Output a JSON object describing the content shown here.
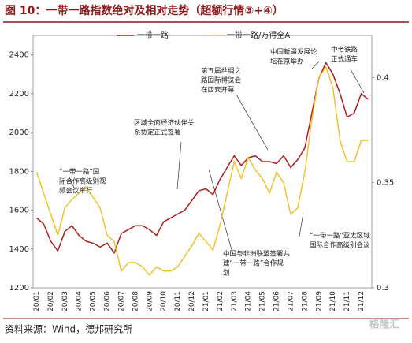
{
  "chart_data": {
    "type": "line",
    "title": "图 10：一带一路指数绝对及相对走势（超额行情③+④）",
    "source": "资料来源：Wind，德邦研究所",
    "watermark": "格隆汇",
    "categories": [
      "20/01",
      null,
      "20/02",
      null,
      "20/03",
      null,
      "20/04",
      null,
      "20/05",
      null,
      "20/06",
      null,
      "20/07",
      null,
      "20/08",
      null,
      "20/09",
      null,
      "20/10",
      null,
      "20/11",
      null,
      "20/12",
      null,
      "21/01",
      null,
      "21/02",
      null,
      "21/03",
      null,
      "21/04",
      null,
      "21/05",
      null,
      "21/06",
      null,
      "21/07",
      null,
      "21/08",
      null,
      "21/09",
      null,
      "21/10",
      null,
      "21/11",
      null,
      "21/12",
      null
    ],
    "series": [
      {
        "name": "一带一路",
        "color": "#b01c1c",
        "values": [
          1560,
          1530,
          1440,
          1390,
          1490,
          1520,
          1470,
          1440,
          1430,
          1410,
          1430,
          1380,
          1480,
          1500,
          1520,
          1520,
          1500,
          1470,
          1540,
          1560,
          1580,
          1600,
          1650,
          1700,
          1710,
          1680,
          1760,
          1820,
          1880,
          1830,
          1870,
          1880,
          1850,
          1850,
          1840,
          1880,
          1820,
          1860,
          1920,
          2100,
          2280,
          2360,
          2300,
          2200,
          2080,
          2100,
          2200,
          2170
        ]
      },
      {
        "name": "一带一路/万得全A",
        "color": "#f2c12e",
        "axis": "y2",
        "values": [
          0.355,
          0.345,
          0.335,
          0.325,
          0.338,
          0.342,
          0.345,
          0.348,
          0.343,
          0.338,
          0.325,
          0.322,
          0.308,
          0.312,
          0.312,
          0.31,
          0.306,
          0.31,
          0.308,
          0.308,
          0.31,
          0.315,
          0.32,
          0.326,
          0.322,
          0.318,
          0.33,
          0.345,
          0.36,
          0.352,
          0.362,
          0.356,
          0.352,
          0.345,
          0.355,
          0.35,
          0.335,
          0.338,
          0.355,
          0.38,
          0.4,
          0.405,
          0.395,
          0.37,
          0.36,
          0.36,
          0.37,
          0.37
        ]
      }
    ],
    "ylim": [
      1200,
      2500
    ],
    "yticks": [
      1200,
      1400,
      1600,
      1800,
      2000,
      2200,
      2400
    ],
    "y2lim": [
      0.3,
      0.42
    ],
    "y2ticks": [
      0.3,
      0.35,
      0.4
    ],
    "annotations": [
      {
        "lines": [
          "“一带一路”国",
          "际合作高级别视",
          "频会议举行"
        ]
      },
      {
        "lines": [
          "区域全面经济伙伴关",
          "系协定正式签署"
        ]
      },
      {
        "lines": [
          "第五届丝绸之",
          "路国际博览会",
          "在西安开幕"
        ]
      },
      {
        "lines": [
          "中国新疆发展论",
          "坛在京举办"
        ]
      },
      {
        "lines": [
          "中老铁路",
          "正式通车"
        ]
      },
      {
        "lines": [
          "中国与非洲联盟签署共",
          "建“一带一路”合作规",
          "划"
        ]
      },
      {
        "lines": [
          "“一带一路”亚太区域",
          "国际合作高级别会议"
        ]
      }
    ]
  }
}
